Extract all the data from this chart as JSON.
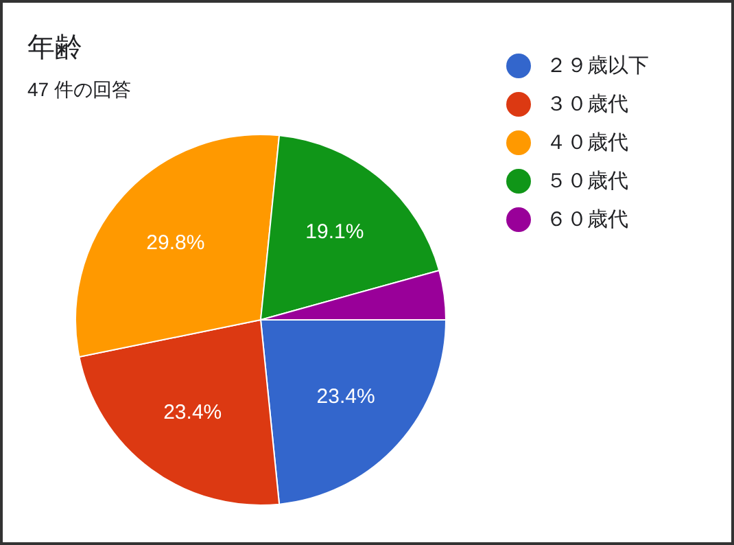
{
  "chart_data": {
    "type": "pie",
    "title": "年齢",
    "subtitle": "47 件の回答",
    "categories": [
      "２９歳以下",
      "３０歳代",
      "４０歳代",
      "５０歳代",
      "６０歳代"
    ],
    "values": [
      23.4,
      23.4,
      29.8,
      19.1,
      4.3
    ],
    "colors": [
      "#3366cc",
      "#dc3912",
      "#ff9900",
      "#109618",
      "#990099"
    ],
    "value_labels": [
      "23.4%",
      "23.4%",
      "29.8%",
      "19.1%",
      null
    ],
    "legend": "right"
  }
}
